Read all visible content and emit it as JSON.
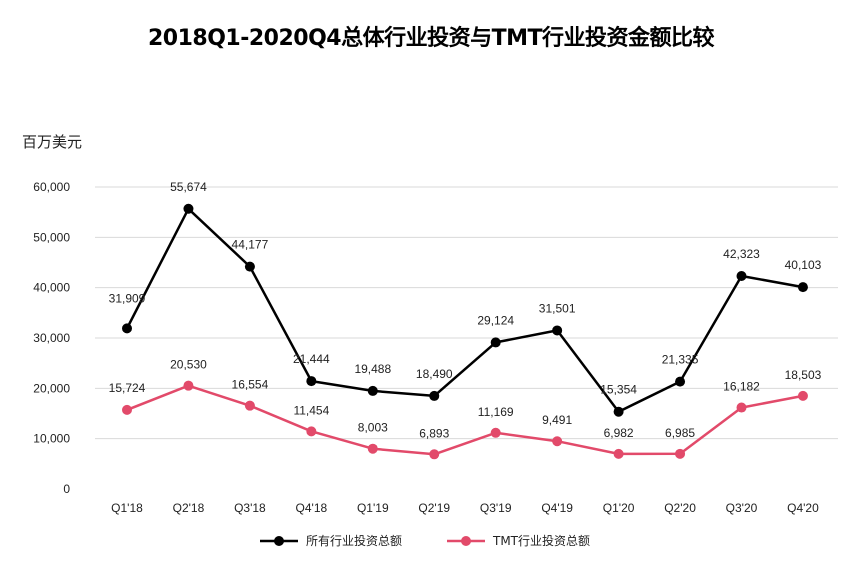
{
  "chart_data": {
    "type": "line",
    "title": "2018Q1-2020Q4总体行业投资与TMT行业投资金额比较",
    "ylabel": "百万美元",
    "xlabel": "",
    "categories": [
      "Q1'18",
      "Q2'18",
      "Q3'18",
      "Q4'18",
      "Q1'19",
      "Q2'19",
      "Q3'19",
      "Q4'19",
      "Q1'20",
      "Q2'20",
      "Q3'20",
      "Q4'20"
    ],
    "ylim": [
      0,
      60000
    ],
    "yticks": [
      0,
      10000,
      20000,
      30000,
      40000,
      50000,
      60000
    ],
    "ytick_labels": [
      "0",
      "10,000",
      "20,000",
      "30,000",
      "40,000",
      "50,000",
      "60,000"
    ],
    "grid": "horizontal",
    "legend_position": "bottom",
    "series": [
      {
        "name": "所有行业投资总额",
        "color": "#000000",
        "values": [
          31909,
          55674,
          44177,
          21444,
          19488,
          18490,
          29124,
          31501,
          15354,
          21335,
          42323,
          40103
        ],
        "labels": [
          "31,909",
          "55,674",
          "44,177",
          "21,444",
          "19,488",
          "18,490",
          "29,124",
          "31,501",
          "15,354",
          "21,335",
          "42,323",
          "40,103"
        ]
      },
      {
        "name": "TMT行业投资总额",
        "color": "#e24a6a",
        "values": [
          15724,
          20530,
          16554,
          11454,
          8003,
          6893,
          11169,
          9491,
          6982,
          6985,
          16182,
          18503
        ],
        "labels": [
          "15,724",
          "20,530",
          "16,554",
          "11,454",
          "8,003",
          "6,893",
          "11,169",
          "9,491",
          "6,982",
          "6,985",
          "16,182",
          "18,503"
        ]
      }
    ]
  }
}
